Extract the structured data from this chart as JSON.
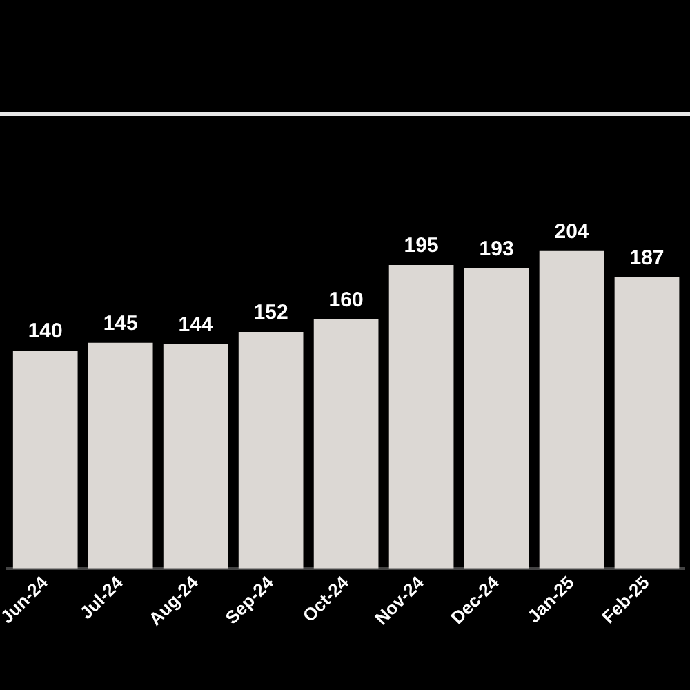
{
  "chart_data": {
    "type": "bar",
    "categories": [
      "Jun-24",
      "Jul-24",
      "Aug-24",
      "Sep-24",
      "Oct-24",
      "Nov-24",
      "Dec-24",
      "Jan-25",
      "Feb-25"
    ],
    "values": [
      140,
      145,
      144,
      152,
      160,
      195,
      193,
      204,
      187
    ],
    "color": "#dcd8d4",
    "data_labels": true,
    "legend": false,
    "tick_labels": "x"
  }
}
